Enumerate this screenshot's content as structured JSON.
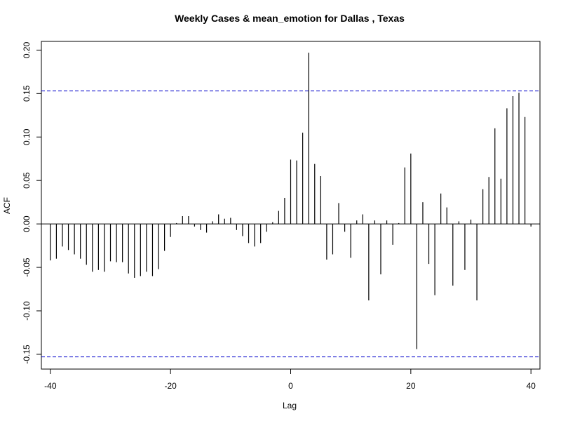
{
  "chart_data": {
    "type": "bar",
    "title": "Weekly Cases & mean_emotion for Dallas , Texas",
    "xlabel": "Lag",
    "ylabel": "ACF",
    "xlim": [
      -41.5,
      41.5
    ],
    "ylim": [
      -0.167,
      0.21
    ],
    "x_ticks": [
      -40,
      -20,
      0,
      20,
      40
    ],
    "x_tick_labels": [
      "-40",
      "-20",
      "0",
      "20",
      "40"
    ],
    "y_ticks": [
      -0.15,
      -0.1,
      -0.05,
      0.0,
      0.05,
      0.1,
      0.15,
      0.2
    ],
    "y_tick_labels": [
      "-0.15",
      "-0.10",
      "-0.05",
      "0.00",
      "0.05",
      "0.10",
      "0.15",
      "0.20"
    ],
    "confidence_limits": [
      0.153,
      -0.153
    ],
    "confidence_color": "#0000cc",
    "bar_color": "#000000",
    "grid": false,
    "lags": [
      -40,
      -39,
      -38,
      -37,
      -36,
      -35,
      -34,
      -33,
      -32,
      -31,
      -30,
      -29,
      -28,
      -27,
      -26,
      -25,
      -24,
      -23,
      -22,
      -21,
      -20,
      -19,
      -18,
      -17,
      -16,
      -15,
      -14,
      -13,
      -12,
      -11,
      -10,
      -9,
      -8,
      -7,
      -6,
      -5,
      -4,
      -3,
      -2,
      -1,
      0,
      1,
      2,
      3,
      4,
      5,
      6,
      7,
      8,
      9,
      10,
      11,
      12,
      13,
      14,
      15,
      16,
      17,
      18,
      19,
      20,
      21,
      22,
      23,
      24,
      25,
      26,
      27,
      28,
      29,
      30,
      31,
      32,
      33,
      34,
      35,
      36,
      37,
      38,
      39,
      40
    ],
    "acf": [
      -0.042,
      -0.04,
      -0.026,
      -0.03,
      -0.035,
      -0.04,
      -0.047,
      -0.055,
      -0.053,
      -0.055,
      -0.043,
      -0.044,
      -0.044,
      -0.057,
      -0.062,
      -0.06,
      -0.055,
      -0.06,
      -0.052,
      -0.031,
      -0.015,
      0.001,
      0.009,
      0.009,
      -0.003,
      -0.007,
      -0.01,
      0.003,
      0.011,
      0.006,
      0.007,
      -0.007,
      -0.014,
      -0.022,
      -0.026,
      -0.022,
      -0.009,
      0.002,
      0.015,
      0.03,
      0.074,
      0.073,
      0.105,
      0.197,
      0.069,
      0.055,
      -0.041,
      -0.035,
      0.024,
      -0.009,
      -0.039,
      0.004,
      0.011,
      -0.088,
      0.004,
      -0.058,
      0.004,
      -0.024,
      0.001,
      0.065,
      0.081,
      -0.144,
      0.025,
      -0.046,
      -0.082,
      0.035,
      0.019,
      -0.071,
      0.003,
      -0.053,
      0.005,
      -0.088,
      0.04,
      0.054,
      0.11,
      0.052,
      0.133,
      0.147,
      0.151,
      0.123,
      -0.003
    ]
  }
}
